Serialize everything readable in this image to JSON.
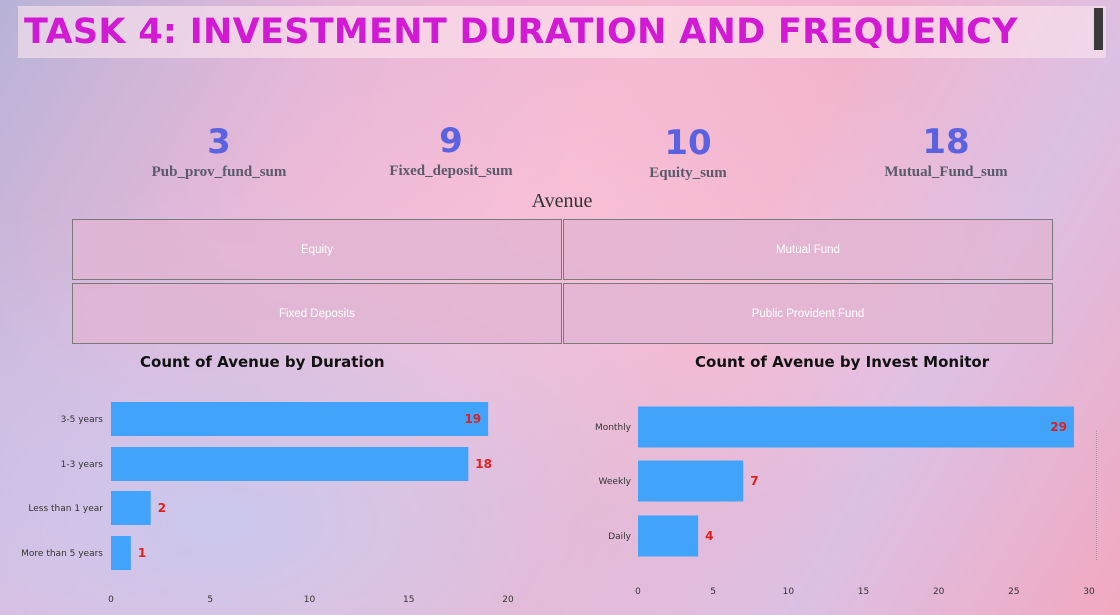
{
  "page": {
    "title": "TASK 4: INVESTMENT DURATION AND FREQUENCY"
  },
  "kpis": [
    {
      "value": "3",
      "label": "Pub_prov_fund_sum"
    },
    {
      "value": "9",
      "label": "Fixed_deposit_sum"
    },
    {
      "value": "10",
      "label": "Equity_sum"
    },
    {
      "value": "18",
      "label": "Mutual_Fund_sum"
    }
  ],
  "slicer": {
    "title": "Avenue",
    "options": [
      "Equity",
      "Mutual Fund",
      "Fixed Deposits",
      "Public Provident Fund"
    ]
  },
  "colors": {
    "bar": "#42a3fa",
    "data_label": "#e02020",
    "title": "#d21ad4",
    "kpi": "#5b62e0"
  },
  "chart_data": [
    {
      "type": "bar",
      "orientation": "horizontal",
      "title": "Count of Avenue by Duration",
      "categories": [
        "3-5 years",
        "1-3 years",
        "Less than 1 year",
        "More than 5 years"
      ],
      "values": [
        19,
        18,
        2,
        1
      ],
      "xlim": [
        0,
        20
      ],
      "xticks": [
        0,
        5,
        10,
        15,
        20
      ],
      "grid": false
    },
    {
      "type": "bar",
      "orientation": "horizontal",
      "title": "Count of Avenue by Invest Monitor",
      "categories": [
        "Monthly",
        "Weekly",
        "Daily"
      ],
      "values": [
        29,
        7,
        4
      ],
      "xlim": [
        0,
        30
      ],
      "xticks": [
        0,
        5,
        10,
        15,
        20,
        25,
        30
      ],
      "grid": false
    }
  ]
}
